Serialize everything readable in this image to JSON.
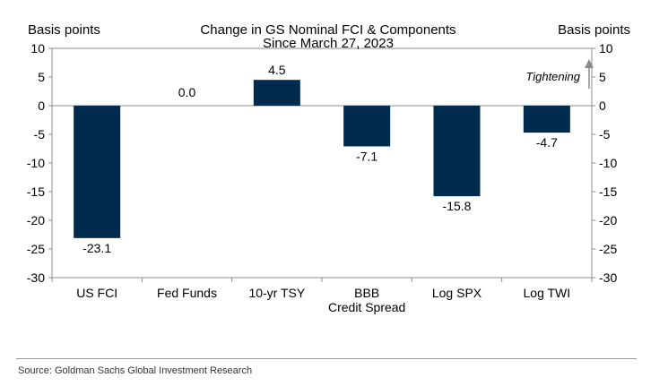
{
  "chart_data": {
    "type": "bar",
    "title": "Change in GS Nominal FCI & Components",
    "subtitle": "Since March 27, 2023",
    "ylabel_left": "Basis points",
    "ylabel_right": "Basis points",
    "categories": [
      [
        "US FCI"
      ],
      [
        "Fed Funds"
      ],
      [
        "10-yr TSY"
      ],
      [
        "BBB",
        "Credit Spread"
      ],
      [
        "Log SPX"
      ],
      [
        "Log TWI"
      ]
    ],
    "values": [
      -23.1,
      0.0,
      4.5,
      -7.1,
      -15.8,
      -4.7
    ],
    "data_labels": [
      "-23.1",
      "0.0",
      "4.5",
      "-7.1",
      "-15.8",
      "-4.7"
    ],
    "ylim": [
      -30,
      10
    ],
    "yticks": [
      10,
      5,
      0,
      -5,
      -10,
      -15,
      -20,
      -25,
      -30
    ],
    "grid": false,
    "annotation": "Tightening",
    "bar_color": "#002a4e"
  },
  "source": "Source: Goldman Sachs Global Investment Research"
}
